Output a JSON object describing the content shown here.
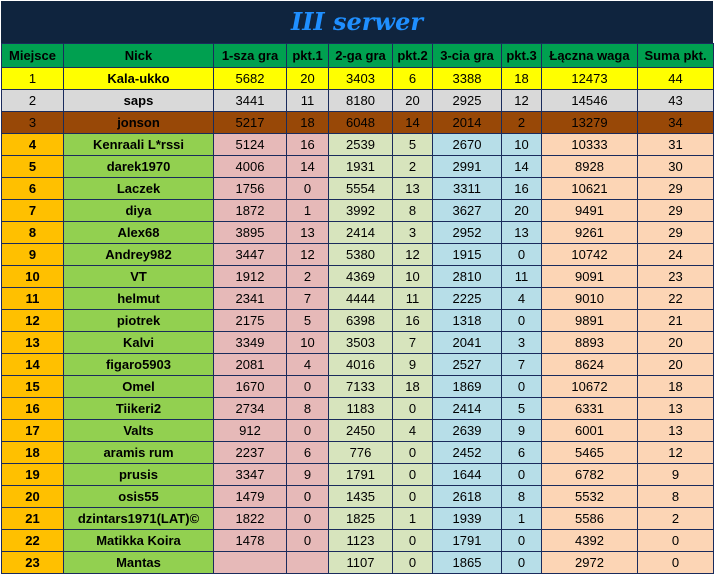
{
  "title": "III serwer",
  "headers": [
    "Miejsce",
    "Nick",
    "1-sza gra",
    "pkt.1",
    "2-ga gra",
    "pkt.2",
    "3-cia gra",
    "pkt.3",
    "Łączna waga",
    "Suma pkt."
  ],
  "rows": [
    [
      "1",
      "Kala-ukko",
      "5682",
      "20",
      "3403",
      "6",
      "3388",
      "18",
      "12473",
      "44"
    ],
    [
      "2",
      "saps",
      "3441",
      "11",
      "8180",
      "20",
      "2925",
      "12",
      "14546",
      "43"
    ],
    [
      "3",
      "jonson",
      "5217",
      "18",
      "6048",
      "14",
      "2014",
      "2",
      "13279",
      "34"
    ],
    [
      "4",
      "Kenraali L*rssi",
      "5124",
      "16",
      "2539",
      "5",
      "2670",
      "10",
      "10333",
      "31"
    ],
    [
      "5",
      "darek1970",
      "4006",
      "14",
      "1931",
      "2",
      "2991",
      "14",
      "8928",
      "30"
    ],
    [
      "6",
      "Laczek",
      "1756",
      "0",
      "5554",
      "13",
      "3311",
      "16",
      "10621",
      "29"
    ],
    [
      "7",
      "diya",
      "1872",
      "1",
      "3992",
      "8",
      "3627",
      "20",
      "9491",
      "29"
    ],
    [
      "8",
      "Alex68",
      "3895",
      "13",
      "2414",
      "3",
      "2952",
      "13",
      "9261",
      "29"
    ],
    [
      "9",
      "Andrey982",
      "3447",
      "12",
      "5380",
      "12",
      "1915",
      "0",
      "10742",
      "24"
    ],
    [
      "10",
      "VT",
      "1912",
      "2",
      "4369",
      "10",
      "2810",
      "11",
      "9091",
      "23"
    ],
    [
      "11",
      "helmut",
      "2341",
      "7",
      "4444",
      "11",
      "2225",
      "4",
      "9010",
      "22"
    ],
    [
      "12",
      "piotrek",
      "2175",
      "5",
      "6398",
      "16",
      "1318",
      "0",
      "9891",
      "21"
    ],
    [
      "13",
      "Kalvi",
      "3349",
      "10",
      "3503",
      "7",
      "2041",
      "3",
      "8893",
      "20"
    ],
    [
      "14",
      "figaro5903",
      "2081",
      "4",
      "4016",
      "9",
      "2527",
      "7",
      "8624",
      "20"
    ],
    [
      "15",
      "Omel",
      "1670",
      "0",
      "7133",
      "18",
      "1869",
      "0",
      "10672",
      "18"
    ],
    [
      "16",
      "Tiikeri2",
      "2734",
      "8",
      "1183",
      "0",
      "2414",
      "5",
      "6331",
      "13"
    ],
    [
      "17",
      "Valts",
      "912",
      "0",
      "2450",
      "4",
      "2639",
      "9",
      "6001",
      "13"
    ],
    [
      "18",
      "aramis rum",
      "2237",
      "6",
      "776",
      "0",
      "2452",
      "6",
      "5465",
      "12"
    ],
    [
      "19",
      "prusis",
      "3347",
      "9",
      "1791",
      "0",
      "1644",
      "0",
      "6782",
      "9"
    ],
    [
      "20",
      "osis55",
      "1479",
      "0",
      "1435",
      "0",
      "2618",
      "8",
      "5532",
      "8"
    ],
    [
      "21",
      "dzintars1971(LAT)©",
      "1822",
      "0",
      "1825",
      "1",
      "1939",
      "1",
      "5586",
      "2"
    ],
    [
      "22",
      "Matikka Koira",
      "1478",
      "0",
      "1123",
      "0",
      "1791",
      "0",
      "4392",
      "0"
    ],
    [
      "23",
      "Mantas",
      "",
      "",
      "1107",
      "0",
      "1865",
      "0",
      "2972",
      "0"
    ]
  ]
}
